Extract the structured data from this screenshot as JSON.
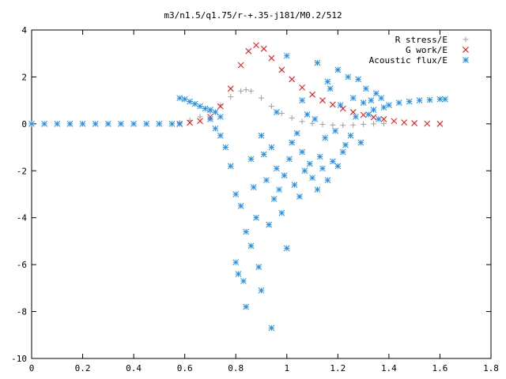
{
  "chart_data": {
    "type": "scatter",
    "title": "m3/n1.5/q1.75/r-+.35-j181/M0.2/512",
    "xlabel": "",
    "ylabel": "",
    "xlim": [
      0,
      1.8
    ],
    "ylim": [
      -10,
      4
    ],
    "xticks": [
      "0",
      "0.2",
      "0.4",
      "0.6",
      "0.8",
      "1",
      "1.2",
      "1.4",
      "1.6",
      "1.8"
    ],
    "yticks": [
      "4",
      "2",
      "0",
      "-2",
      "-4",
      "-6",
      "-8",
      "-10"
    ],
    "grid": false,
    "legend_position": "top-right",
    "series": [
      {
        "name": "R stress/E",
        "marker": "+",
        "color": "#a0a0a0",
        "points": [
          [
            0.58,
            0.05
          ],
          [
            0.62,
            0.15
          ],
          [
            0.66,
            0.3
          ],
          [
            0.7,
            0.5
          ],
          [
            0.74,
            0.8
          ],
          [
            0.78,
            1.15
          ],
          [
            0.82,
            1.4
          ],
          [
            0.84,
            1.45
          ],
          [
            0.86,
            1.4
          ],
          [
            0.9,
            1.1
          ],
          [
            0.94,
            0.75
          ],
          [
            0.98,
            0.45
          ],
          [
            1.02,
            0.25
          ],
          [
            1.06,
            0.1
          ],
          [
            1.1,
            0.02
          ],
          [
            1.14,
            -0.02
          ],
          [
            1.18,
            -0.05
          ],
          [
            1.22,
            -0.06
          ],
          [
            1.26,
            -0.05
          ],
          [
            1.3,
            -0.02
          ],
          [
            1.34,
            0.0
          ],
          [
            1.38,
            0.01
          ]
        ]
      },
      {
        "name": "G work/E",
        "marker": "x",
        "color": "#ff0000",
        "points": [
          [
            0.58,
            0.0
          ],
          [
            0.62,
            0.05
          ],
          [
            0.66,
            0.12
          ],
          [
            0.7,
            0.3
          ],
          [
            0.74,
            0.75
          ],
          [
            0.78,
            1.5
          ],
          [
            0.82,
            2.5
          ],
          [
            0.85,
            3.1
          ],
          [
            0.88,
            3.35
          ],
          [
            0.91,
            3.2
          ],
          [
            0.94,
            2.8
          ],
          [
            0.98,
            2.3
          ],
          [
            1.02,
            1.9
          ],
          [
            1.06,
            1.55
          ],
          [
            1.1,
            1.25
          ],
          [
            1.14,
            1.0
          ],
          [
            1.18,
            0.82
          ],
          [
            1.22,
            0.65
          ],
          [
            1.26,
            0.5
          ],
          [
            1.3,
            0.38
          ],
          [
            1.34,
            0.28
          ],
          [
            1.38,
            0.2
          ],
          [
            1.42,
            0.12
          ],
          [
            1.46,
            0.06
          ],
          [
            1.5,
            0.03
          ],
          [
            1.55,
            0.01
          ],
          [
            1.6,
            0.0
          ]
        ]
      },
      {
        "name": "Acoustic flux/E",
        "marker": "*",
        "color": "#1f8ff0",
        "points": [
          [
            0.0,
            0.0
          ],
          [
            0.05,
            0.0
          ],
          [
            0.1,
            0.0
          ],
          [
            0.15,
            0.0
          ],
          [
            0.2,
            0.0
          ],
          [
            0.25,
            0.0
          ],
          [
            0.3,
            0.0
          ],
          [
            0.35,
            0.0
          ],
          [
            0.4,
            0.0
          ],
          [
            0.45,
            0.0
          ],
          [
            0.5,
            0.0
          ],
          [
            0.55,
            0.0
          ],
          [
            0.58,
            0.0
          ],
          [
            0.58,
            1.1
          ],
          [
            0.6,
            1.05
          ],
          [
            0.62,
            0.95
          ],
          [
            0.64,
            0.85
          ],
          [
            0.66,
            0.75
          ],
          [
            0.68,
            0.65
          ],
          [
            0.7,
            0.6
          ],
          [
            0.72,
            0.5
          ],
          [
            0.74,
            0.3
          ],
          [
            0.7,
            0.2
          ],
          [
            0.72,
            -0.2
          ],
          [
            0.74,
            -0.5
          ],
          [
            0.76,
            -1.0
          ],
          [
            0.78,
            -1.8
          ],
          [
            0.8,
            -3.0
          ],
          [
            0.8,
            -5.9
          ],
          [
            0.81,
            -6.4
          ],
          [
            0.82,
            -3.5
          ],
          [
            0.83,
            -6.7
          ],
          [
            0.84,
            -7.8
          ],
          [
            0.84,
            -4.6
          ],
          [
            0.86,
            -5.2
          ],
          [
            0.87,
            -2.7
          ],
          [
            0.88,
            -4.0
          ],
          [
            0.89,
            -6.1
          ],
          [
            0.9,
            -7.1
          ],
          [
            0.91,
            -1.3
          ],
          [
            0.92,
            -2.4
          ],
          [
            0.93,
            -4.3
          ],
          [
            0.94,
            -8.7
          ],
          [
            0.95,
            -3.2
          ],
          [
            0.96,
            -1.9
          ],
          [
            0.97,
            -2.8
          ],
          [
            0.98,
            -3.8
          ],
          [
            0.99,
            -2.2
          ],
          [
            1.0,
            -5.3
          ],
          [
            1.01,
            -1.5
          ],
          [
            1.02,
            -0.8
          ],
          [
            1.03,
            -2.6
          ],
          [
            1.04,
            -0.4
          ],
          [
            1.05,
            -3.1
          ],
          [
            1.06,
            -1.2
          ],
          [
            1.07,
            -2.0
          ],
          [
            1.08,
            0.4
          ],
          [
            1.09,
            -1.7
          ],
          [
            1.1,
            -2.3
          ],
          [
            1.11,
            0.2
          ],
          [
            1.12,
            -2.8
          ],
          [
            1.13,
            -1.4
          ],
          [
            1.14,
            -1.9
          ],
          [
            1.15,
            -0.6
          ],
          [
            1.16,
            -2.4
          ],
          [
            1.17,
            1.5
          ],
          [
            1.18,
            -1.6
          ],
          [
            1.19,
            -0.3
          ],
          [
            1.2,
            -1.8
          ],
          [
            1.21,
            0.8
          ],
          [
            1.22,
            -1.2
          ],
          [
            1.23,
            -0.9
          ],
          [
            1.24,
            2.0
          ],
          [
            1.25,
            -0.5
          ],
          [
            1.26,
            1.1
          ],
          [
            1.27,
            0.3
          ],
          [
            1.28,
            1.9
          ],
          [
            1.29,
            -0.8
          ],
          [
            1.3,
            0.9
          ],
          [
            1.31,
            1.5
          ],
          [
            1.32,
            0.4
          ],
          [
            1.33,
            1.0
          ],
          [
            1.34,
            0.6
          ],
          [
            1.35,
            1.3
          ],
          [
            1.36,
            0.2
          ],
          [
            1.37,
            1.1
          ],
          [
            1.38,
            0.7
          ],
          [
            1.0,
            2.9
          ],
          [
            1.12,
            2.6
          ],
          [
            1.16,
            1.8
          ],
          [
            1.2,
            2.3
          ],
          [
            1.06,
            1.0
          ],
          [
            0.96,
            0.5
          ],
          [
            0.9,
            -0.5
          ],
          [
            0.86,
            -1.5
          ],
          [
            0.94,
            -1.0
          ],
          [
            1.4,
            0.8
          ],
          [
            1.44,
            0.9
          ],
          [
            1.48,
            0.95
          ],
          [
            1.52,
            1.0
          ],
          [
            1.56,
            1.02
          ],
          [
            1.6,
            1.05
          ],
          [
            1.62,
            1.05
          ]
        ]
      }
    ]
  }
}
